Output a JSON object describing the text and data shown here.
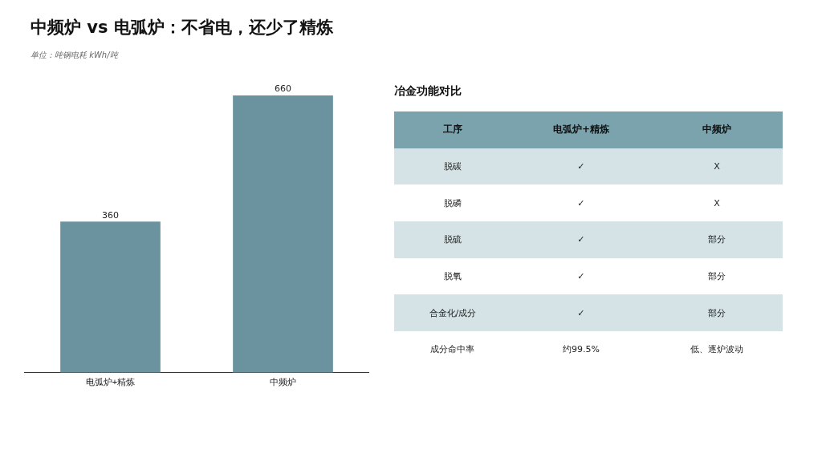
{
  "chart_data": [
    {
      "type": "bar",
      "title": "中频炉 vs 电弧炉：不省电，还少了精炼",
      "subtitle": "单位：吨钢电耗 kWh/吨",
      "categories": [
        "电弧炉+精炼",
        "中频炉"
      ],
      "values": [
        360,
        660
      ],
      "color": "#6b939f",
      "data_labels": true,
      "grid": false,
      "legend": false
    },
    {
      "type": "other",
      "title": "冶金功能对比",
      "annotations": [
        "工序",
        "电弧炉+精炼",
        "中频炉",
        "脱碳",
        "✓",
        "X",
        "脱磷",
        "✓",
        "X",
        "脱硫",
        "✓",
        "部分",
        "脱氧",
        "✓",
        "部分",
        "合金化/成分",
        "✓",
        "部分",
        "成分命中率",
        "约99.5%",
        "低、逐炉波动"
      ]
    }
  ]
}
